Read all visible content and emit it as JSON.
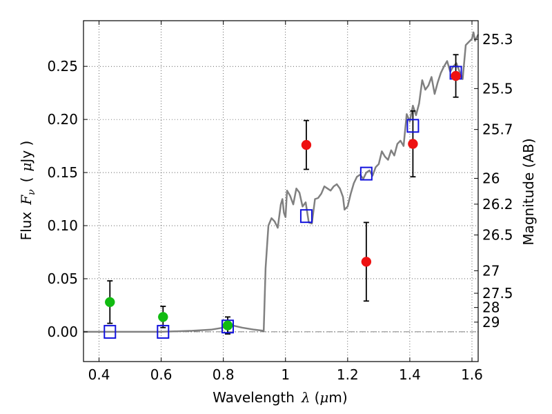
{
  "chart_data": {
    "type": "scatter",
    "title": "",
    "xlabel_text": "Wavelength",
    "xlabel_symbol": "λ",
    "xlabel_unit_open": "(",
    "xlabel_unit_symbol": "μ",
    "xlabel_unit_rest": "m)",
    "ylabel_text": "Flux",
    "ylabel_symbol_main": "F",
    "ylabel_symbol_sub": "ν",
    "ylabel_unit_open": "(",
    "ylabel_unit_symbol": "μ",
    "ylabel_unit_rest": "Jy )",
    "y2label": "Magnitude (AB)",
    "xlim": [
      0.35,
      1.62
    ],
    "ylim": [
      -0.028,
      0.293
    ],
    "grid": true,
    "x_ticks": [
      {
        "value": 0.4,
        "label": "0.4"
      },
      {
        "value": 0.6,
        "label": "0.6"
      },
      {
        "value": 0.8,
        "label": "0.8"
      },
      {
        "value": 1.0,
        "label": "1"
      },
      {
        "value": 1.2,
        "label": "1.2"
      },
      {
        "value": 1.4,
        "label": "1.4"
      },
      {
        "value": 1.6,
        "label": "1.6"
      }
    ],
    "y_ticks": [
      {
        "value": 0.0,
        "label": "0.00"
      },
      {
        "value": 0.05,
        "label": "0.05"
      },
      {
        "value": 0.1,
        "label": "0.10"
      },
      {
        "value": 0.15,
        "label": "0.15"
      },
      {
        "value": 0.2,
        "label": "0.20"
      },
      {
        "value": 0.25,
        "label": "0.25"
      }
    ],
    "mag_ticks": [
      {
        "value": 25.3,
        "label": "25.3"
      },
      {
        "value": 25.5,
        "label": "25.5"
      },
      {
        "value": 25.7,
        "label": "25.7"
      },
      {
        "value": 26,
        "label": "26"
      },
      {
        "value": 26.2,
        "label": "26.2"
      },
      {
        "value": 26.5,
        "label": "26.5"
      },
      {
        "value": 27,
        "label": "27"
      },
      {
        "value": 27.5,
        "label": "27.5"
      },
      {
        "value": 28,
        "label": "28"
      },
      {
        "value": 29,
        "label": "29"
      }
    ],
    "zero_line": true,
    "model_spectrum": {
      "name": "model SED",
      "color": "#808080",
      "points": [
        [
          0.35,
          0.0
        ],
        [
          0.6,
          0.0
        ],
        [
          0.7,
          0.001
        ],
        [
          0.76,
          0.002
        ],
        [
          0.8,
          0.004
        ],
        [
          0.83,
          0.006
        ],
        [
          0.86,
          0.004
        ],
        [
          0.9,
          0.002
        ],
        [
          0.93,
          0.001
        ],
        [
          0.936,
          0.06
        ],
        [
          0.945,
          0.1
        ],
        [
          0.955,
          0.107
        ],
        [
          0.965,
          0.104
        ],
        [
          0.975,
          0.098
        ],
        [
          0.985,
          0.12
        ],
        [
          0.99,
          0.125
        ],
        [
          0.995,
          0.112
        ],
        [
          1.0,
          0.108
        ],
        [
          1.005,
          0.133
        ],
        [
          1.015,
          0.128
        ],
        [
          1.025,
          0.12
        ],
        [
          1.035,
          0.135
        ],
        [
          1.045,
          0.131
        ],
        [
          1.055,
          0.118
        ],
        [
          1.065,
          0.122
        ],
        [
          1.075,
          0.103
        ],
        [
          1.085,
          0.102
        ],
        [
          1.095,
          0.125
        ],
        [
          1.105,
          0.126
        ],
        [
          1.115,
          0.13
        ],
        [
          1.125,
          0.137
        ],
        [
          1.135,
          0.135
        ],
        [
          1.145,
          0.133
        ],
        [
          1.155,
          0.137
        ],
        [
          1.165,
          0.139
        ],
        [
          1.175,
          0.135
        ],
        [
          1.185,
          0.127
        ],
        [
          1.19,
          0.115
        ],
        [
          1.2,
          0.118
        ],
        [
          1.21,
          0.13
        ],
        [
          1.22,
          0.14
        ],
        [
          1.23,
          0.146
        ],
        [
          1.24,
          0.148
        ],
        [
          1.25,
          0.144
        ],
        [
          1.26,
          0.15
        ],
        [
          1.27,
          0.152
        ],
        [
          1.28,
          0.147
        ],
        [
          1.29,
          0.155
        ],
        [
          1.3,
          0.158
        ],
        [
          1.31,
          0.17
        ],
        [
          1.32,
          0.165
        ],
        [
          1.33,
          0.162
        ],
        [
          1.34,
          0.171
        ],
        [
          1.35,
          0.166
        ],
        [
          1.36,
          0.177
        ],
        [
          1.37,
          0.18
        ],
        [
          1.38,
          0.175
        ],
        [
          1.39,
          0.205
        ],
        [
          1.4,
          0.198
        ],
        [
          1.41,
          0.213
        ],
        [
          1.42,
          0.204
        ],
        [
          1.43,
          0.215
        ],
        [
          1.44,
          0.237
        ],
        [
          1.45,
          0.228
        ],
        [
          1.46,
          0.232
        ],
        [
          1.47,
          0.24
        ],
        [
          1.48,
          0.224
        ],
        [
          1.49,
          0.235
        ],
        [
          1.5,
          0.244
        ],
        [
          1.51,
          0.25
        ],
        [
          1.52,
          0.255
        ],
        [
          1.53,
          0.245
        ],
        [
          1.54,
          0.25
        ],
        [
          1.55,
          0.253
        ],
        [
          1.56,
          0.245
        ],
        [
          1.57,
          0.238
        ],
        [
          1.58,
          0.27
        ],
        [
          1.59,
          0.273
        ],
        [
          1.6,
          0.276
        ],
        [
          1.605,
          0.282
        ],
        [
          1.61,
          0.274
        ],
        [
          1.62,
          0.28
        ]
      ]
    },
    "series": [
      {
        "name": "green detections",
        "marker": "circle",
        "color": "#11bb11",
        "points": [
          {
            "x": 0.435,
            "y": 0.028,
            "yerr": 0.02
          },
          {
            "x": 0.606,
            "y": 0.014,
            "yerr": 0.01
          },
          {
            "x": 0.814,
            "y": 0.006,
            "yerr": 0.008
          }
        ]
      },
      {
        "name": "red detections",
        "marker": "circle",
        "color": "#ee1111",
        "points": [
          {
            "x": 1.067,
            "y": 0.176,
            "yerr": 0.023
          },
          {
            "x": 1.26,
            "y": 0.066,
            "yerr": 0.037
          },
          {
            "x": 1.41,
            "y": 0.177,
            "yerr": 0.031
          },
          {
            "x": 1.548,
            "y": 0.241,
            "yerr": 0.02
          }
        ]
      },
      {
        "name": "model photometry",
        "marker": "open-square",
        "color": "#1111dd",
        "points": [
          {
            "x": 0.435,
            "y": 0.0
          },
          {
            "x": 0.606,
            "y": 0.0
          },
          {
            "x": 0.814,
            "y": 0.005
          },
          {
            "x": 1.067,
            "y": 0.109
          },
          {
            "x": 1.26,
            "y": 0.149
          },
          {
            "x": 1.41,
            "y": 0.194
          },
          {
            "x": 1.548,
            "y": 0.244
          }
        ]
      }
    ]
  }
}
